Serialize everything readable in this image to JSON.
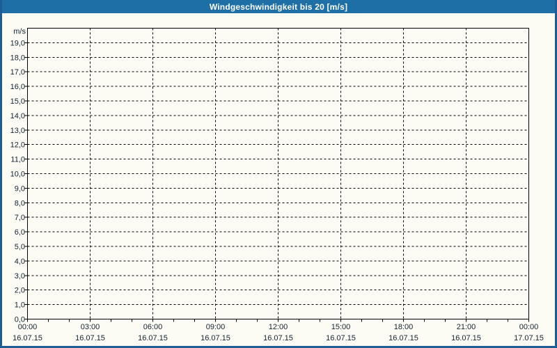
{
  "window": {
    "title": "Windgeschwindigkeit bis 20 [m/s]"
  },
  "colors": {
    "title_bar_bg": "#1d6fa5",
    "title_text": "#ffffff",
    "page_border": "#1f5c94",
    "page_bg": "#fcfcf5",
    "grid_line": "#000000",
    "axis_line": "#000000",
    "label_text": "#13212f"
  },
  "chart_data": {
    "type": "line",
    "title": "Windgeschwindigkeit bis 20 [m/s]",
    "ylabel": "m/s",
    "xlabel": "",
    "ylim": [
      0,
      20
    ],
    "ytick_interval": 1.0,
    "grid": "dashed",
    "legend": "none",
    "series": [],
    "y_ticks": [
      {
        "value": 19,
        "label": "19,0"
      },
      {
        "value": 18,
        "label": "18,0"
      },
      {
        "value": 17,
        "label": "17,0"
      },
      {
        "value": 16,
        "label": "16,0"
      },
      {
        "value": 15,
        "label": "15,0"
      },
      {
        "value": 14,
        "label": "14,0"
      },
      {
        "value": 13,
        "label": "13,0"
      },
      {
        "value": 12,
        "label": "12,0"
      },
      {
        "value": 11,
        "label": "11,0"
      },
      {
        "value": 10,
        "label": "10,0"
      },
      {
        "value": 9,
        "label": "9,0"
      },
      {
        "value": 8,
        "label": "8,0"
      },
      {
        "value": 7,
        "label": "7,0"
      },
      {
        "value": 6,
        "label": "6,0"
      },
      {
        "value": 5,
        "label": "5,0"
      },
      {
        "value": 4,
        "label": "4,0"
      },
      {
        "value": 3,
        "label": "3,0"
      },
      {
        "value": 2,
        "label": "2,0"
      },
      {
        "value": 1,
        "label": "1,0"
      },
      {
        "value": 0,
        "label": "0,0"
      }
    ],
    "x_range_hours": [
      0,
      24
    ],
    "x_major_interval_hours": 3,
    "x_minor_interval_hours": 1,
    "x_major_ticks": [
      {
        "hour": 0,
        "time": "00:00",
        "date": "16.07.15"
      },
      {
        "hour": 3,
        "time": "03:00",
        "date": "16.07.15"
      },
      {
        "hour": 6,
        "time": "06:00",
        "date": "16.07.15"
      },
      {
        "hour": 9,
        "time": "09:00",
        "date": "16.07.15"
      },
      {
        "hour": 12,
        "time": "12:00",
        "date": "16.07.15"
      },
      {
        "hour": 15,
        "time": "15:00",
        "date": "16.07.15"
      },
      {
        "hour": 18,
        "time": "18:00",
        "date": "16.07.15"
      },
      {
        "hour": 21,
        "time": "21:00",
        "date": "16.07.15"
      },
      {
        "hour": 24,
        "time": "00:00",
        "date": "17.07.15"
      }
    ]
  }
}
